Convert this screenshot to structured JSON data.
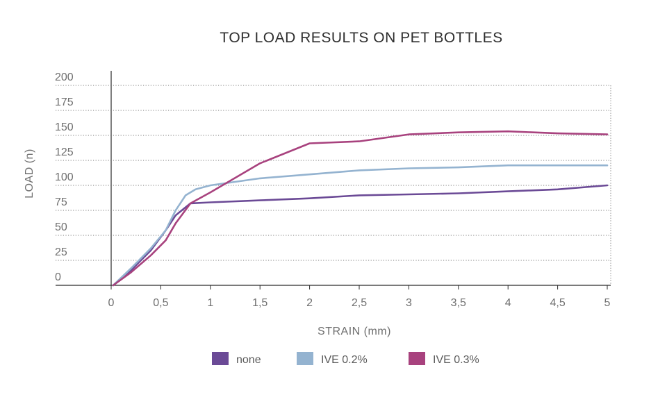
{
  "chart_data": {
    "type": "line",
    "title": "TOP LOAD RESULTS ON PET BOTTLES",
    "xlabel": "STRAIN (mm)",
    "ylabel": "LOAD (n)",
    "xlim": [
      0,
      5
    ],
    "ylim": [
      0,
      200
    ],
    "x_ticks": [
      "0",
      "0,5",
      "1",
      "1,5",
      "2",
      "2,5",
      "3",
      "3,5",
      "4",
      "4,5",
      "5"
    ],
    "y_ticks": [
      "0",
      "25",
      "50",
      "75",
      "100",
      "125",
      "150",
      "175",
      "200"
    ],
    "grid": "horizontal dotted",
    "legend_position": "bottom",
    "series": [
      {
        "name": "none",
        "color": "#6b4a96",
        "points": [
          [
            0.02,
            0
          ],
          [
            0.2,
            15
          ],
          [
            0.4,
            35
          ],
          [
            0.55,
            55
          ],
          [
            0.65,
            70
          ],
          [
            0.8,
            82
          ],
          [
            1,
            83
          ],
          [
            1.5,
            85
          ],
          [
            2,
            87
          ],
          [
            2.5,
            90
          ],
          [
            3,
            91
          ],
          [
            3.5,
            92
          ],
          [
            4,
            94
          ],
          [
            4.5,
            96
          ],
          [
            5,
            100
          ]
        ]
      },
      {
        "name": "IVE 0.2%",
        "color": "#94b3d0",
        "points": [
          [
            0.02,
            0
          ],
          [
            0.2,
            17
          ],
          [
            0.4,
            37
          ],
          [
            0.55,
            55
          ],
          [
            0.65,
            75
          ],
          [
            0.75,
            90
          ],
          [
            0.85,
            96
          ],
          [
            1,
            100
          ],
          [
            1.5,
            107
          ],
          [
            2,
            111
          ],
          [
            2.5,
            115
          ],
          [
            3,
            117
          ],
          [
            3.5,
            118
          ],
          [
            4,
            120
          ],
          [
            4.5,
            120
          ],
          [
            5,
            120
          ]
        ]
      },
      {
        "name": "IVE 0.3%",
        "color": "#a8427e",
        "points": [
          [
            0.02,
            0
          ],
          [
            0.2,
            13
          ],
          [
            0.4,
            30
          ],
          [
            0.55,
            45
          ],
          [
            0.65,
            62
          ],
          [
            0.8,
            82
          ],
          [
            1,
            93
          ],
          [
            1.5,
            122
          ],
          [
            2,
            142
          ],
          [
            2.5,
            144
          ],
          [
            3,
            151
          ],
          [
            3.5,
            153
          ],
          [
            4,
            154
          ],
          [
            4.5,
            152
          ],
          [
            5,
            151
          ]
        ]
      }
    ]
  }
}
